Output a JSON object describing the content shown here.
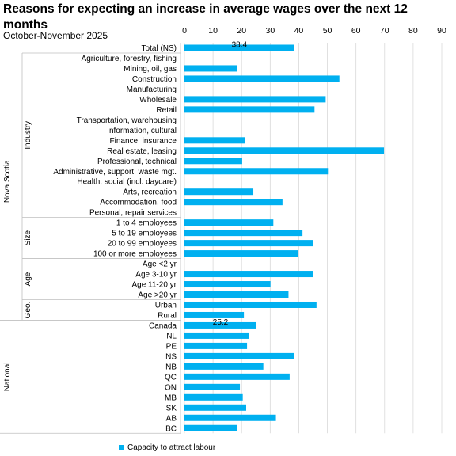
{
  "chart_data": {
    "type": "bar",
    "orientation": "horizontal",
    "title": "Reasons for expecting an increase in average wages over the next 12 months",
    "subtitle": "October-November 2025",
    "xlim": [
      0,
      90
    ],
    "xticks": [
      0,
      10,
      20,
      30,
      40,
      50,
      60,
      70,
      80,
      90
    ],
    "grid": true,
    "legend_position": "bottom",
    "colors": {
      "bar": "#00B0F0",
      "grid": "#d9d9d9",
      "divider": "#bfbfbf"
    },
    "series": [
      {
        "name": "Capacity to attract labour"
      }
    ],
    "groups": [
      {
        "label": "Nova Scotia",
        "subgroups": [
          {
            "label": "",
            "rows": [
              {
                "category": "Total (NS)",
                "value": 38.4,
                "data_label": "38.4"
              }
            ]
          },
          {
            "label": "Industry",
            "rows": [
              {
                "category": "Agriculture, forestry, fishing",
                "value": null
              },
              {
                "category": "Mining, oil, gas",
                "value": 18.5
              },
              {
                "category": "Construction",
                "value": 54.2
              },
              {
                "category": "Manufacturing",
                "value": null
              },
              {
                "category": "Wholesale",
                "value": 49.4
              },
              {
                "category": "Retail",
                "value": 45.5
              },
              {
                "category": "Transportation, warehousing",
                "value": null
              },
              {
                "category": "Information, cultural",
                "value": null
              },
              {
                "category": "Finance, insurance",
                "value": 21.2
              },
              {
                "category": "Real estate, leasing",
                "value": 69.8
              },
              {
                "category": "Professional, technical",
                "value": 20.2
              },
              {
                "category": "Administrative, support, waste mgt.",
                "value": 50.2
              },
              {
                "category": "Health, social (incl. daycare)",
                "value": null
              },
              {
                "category": "Arts, recreation",
                "value": 24.1
              },
              {
                "category": "Accommodation, food",
                "value": 34.3
              },
              {
                "category": "Personal, repair services",
                "value": null
              }
            ]
          },
          {
            "label": "Size",
            "rows": [
              {
                "category": "1 to 4 employees",
                "value": 31.1
              },
              {
                "category": "5 to 19 employees",
                "value": 41.3
              },
              {
                "category": "20 to 99 employees",
                "value": 44.9
              },
              {
                "category": "100 or more employees",
                "value": 39.6
              }
            ]
          },
          {
            "label": "Age",
            "rows": [
              {
                "category": "Age <2 yr",
                "value": null
              },
              {
                "category": "Age 3-10 yr",
                "value": 45.1
              },
              {
                "category": "Age 11-20 yr",
                "value": 30.1
              },
              {
                "category": "Age >20 yr",
                "value": 36.4
              }
            ]
          },
          {
            "label": "Geo.",
            "rows": [
              {
                "category": "Urban",
                "value": 46.2
              },
              {
                "category": "Rural",
                "value": 20.8
              }
            ]
          }
        ]
      },
      {
        "label": "National",
        "subgroups": [
          {
            "label": "",
            "rows": [
              {
                "category": "Canada",
                "value": 25.2,
                "data_label": "25.2"
              },
              {
                "category": "NL",
                "value": 22.6
              },
              {
                "category": "PE",
                "value": 21.9
              },
              {
                "category": "NS",
                "value": 38.4
              },
              {
                "category": "NB",
                "value": 27.6
              },
              {
                "category": "QC",
                "value": 36.8
              },
              {
                "category": "ON",
                "value": 19.4
              },
              {
                "category": "MB",
                "value": 20.4
              },
              {
                "category": "SK",
                "value": 21.6
              },
              {
                "category": "AB",
                "value": 32.0
              },
              {
                "category": "BC",
                "value": 18.3
              }
            ]
          }
        ]
      }
    ]
  }
}
